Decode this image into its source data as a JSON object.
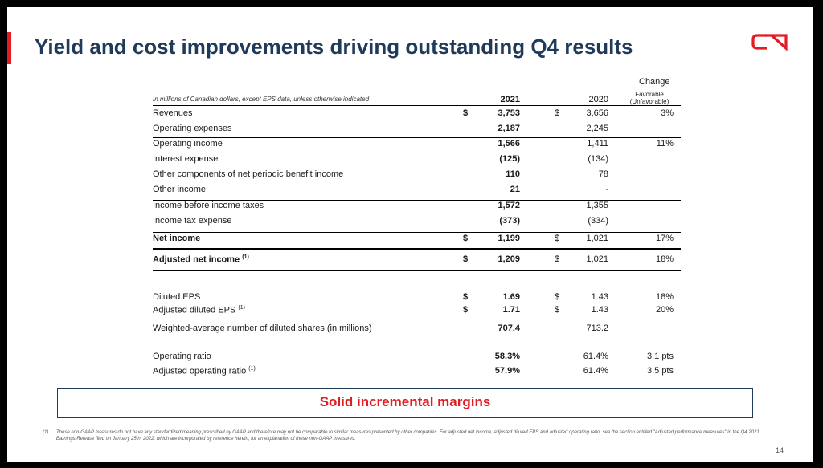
{
  "title": "Yield and cost improvements driving outstanding Q4 results",
  "logo": "CN",
  "table": {
    "unit_note": "In millions of Canadian dollars, except EPS data, unless otherwise indicated",
    "col_2021": "2021",
    "col_2020": "2020",
    "change_header": "Change",
    "change_subheader": "Favorable (Unfavorable)",
    "rows": [
      {
        "label": "Revenues",
        "cur1": "$",
        "v2021": "3,753",
        "cur2": "$",
        "v2020": "3,656",
        "change": "3%"
      },
      {
        "label": "Operating expenses",
        "v2021": "2,187",
        "v2020": "2,245"
      },
      {
        "label": "Operating income",
        "v2021": "1,566",
        "v2020": "1,411",
        "change": "11%"
      },
      {
        "label": "Interest expense",
        "v2021": "(125)",
        "v2020": "(134)"
      },
      {
        "label": "Other components of net periodic benefit income",
        "v2021": "110",
        "v2020": "78"
      },
      {
        "label": "Other income",
        "v2021": "21",
        "v2020": "-"
      },
      {
        "label": "Income before income taxes",
        "v2021": "1,572",
        "v2020": "1,355"
      },
      {
        "label": "Income tax expense",
        "v2021": "(373)",
        "v2020": "(334)"
      },
      {
        "label": "Net income",
        "cur1": "$",
        "v2021": "1,199",
        "cur2": "$",
        "v2020": "1,021",
        "change": "17%"
      },
      {
        "label": "Adjusted net income",
        "note": "(1)",
        "cur1": "$",
        "v2021": "1,209",
        "cur2": "$",
        "v2020": "1,021",
        "change": "18%"
      },
      {
        "label": "Diluted EPS",
        "cur1": "$",
        "v2021": "1.69",
        "cur2": "$",
        "v2020": "1.43",
        "change": "18%"
      },
      {
        "label": "Adjusted diluted EPS",
        "note": "(1)",
        "cur1": "$",
        "v2021": "1.71",
        "cur2": "$",
        "v2020": "1.43",
        "change": "20%"
      },
      {
        "label": "Weighted-average number of diluted shares (in millions)",
        "v2021": "707.4",
        "v2020": "713.2"
      },
      {
        "label": "Operating ratio",
        "v2021": "58.3%",
        "v2020": "61.4%",
        "change": "3.1  pts"
      },
      {
        "label": "Adjusted operating ratio",
        "note": "(1)",
        "v2021": "57.9%",
        "v2020": "61.4%",
        "change": "3.5  pts"
      }
    ]
  },
  "banner": "Solid incremental margins",
  "footnote": {
    "mark": "(1)",
    "text": "These non-GAAP measures do not have any standardized meaning prescribed by GAAP and therefore may not be comparable to similar measures presented by other companies. For adjusted net income, adjusted diluted EPS and adjusted operating ratio, see the section entitled \"Adjusted performance measures\" in the Q4 2021 Earnings Release filed on January 25th, 2022, which are incorporated by reference herein, for an explanation of these non-GAAP measures."
  },
  "page_number": "14",
  "colors": {
    "accent_red": "#e31b23",
    "title_navy": "#1f3a5a"
  }
}
